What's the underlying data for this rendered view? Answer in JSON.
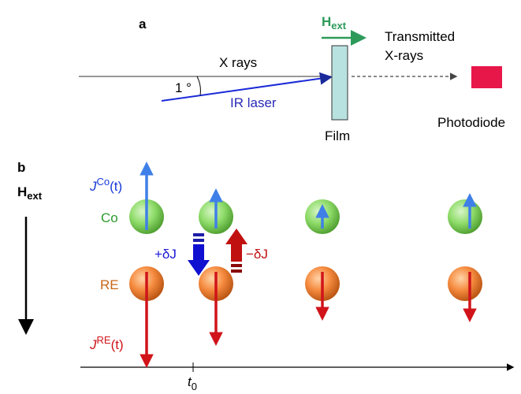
{
  "panel_a": {
    "label": "a",
    "h_ext": {
      "main": "H",
      "sub": "ext"
    },
    "x_rays": "X rays",
    "angle": "1 °",
    "ir_laser": "IR laser",
    "transmitted": [
      "Transmitted",
      "X-rays"
    ],
    "film": "Film",
    "photodiode": "Photodiode"
  },
  "panel_b": {
    "label": "b",
    "h_ext": {
      "main": "H",
      "sub": "ext"
    },
    "j_co": {
      "main": "J",
      "sup": "Co",
      "tail": "(t)"
    },
    "co": "Co",
    "re": "RE",
    "plus_dj": "+δJ",
    "minus_dj": "−δJ",
    "j_re": {
      "main": "J",
      "sup": "RE",
      "tail": "(t)"
    },
    "t0": {
      "main": "t",
      "sub": "0"
    }
  }
}
